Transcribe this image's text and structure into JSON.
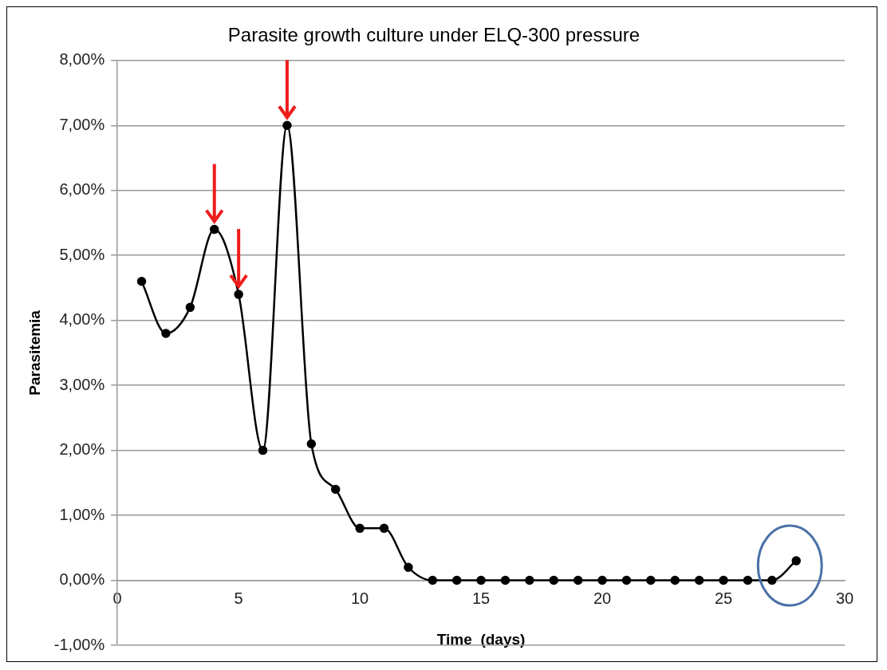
{
  "chart_data": {
    "type": "line",
    "title": "Parasite growth culture under ELQ-300 pressure",
    "xlabel": "Time  (days)",
    "ylabel": "Parasitemia",
    "x": [
      1,
      2,
      3,
      4,
      5,
      6,
      7,
      8,
      9,
      10,
      11,
      12,
      13,
      14,
      15,
      16,
      17,
      18,
      19,
      20,
      21,
      22,
      23,
      24,
      25,
      26,
      27,
      28
    ],
    "series": [
      {
        "color": "#000000",
        "values": [
          4.6,
          3.8,
          4.2,
          5.4,
          4.4,
          2.0,
          7.0,
          2.1,
          1.4,
          0.8,
          0.8,
          0.2,
          0,
          0,
          0,
          0,
          0,
          0,
          0,
          0,
          0,
          0,
          0,
          0,
          0,
          0,
          0,
          0.3
        ]
      }
    ],
    "xlim": [
      0,
      30
    ],
    "xticks": [
      0,
      5,
      10,
      15,
      20,
      25,
      30
    ],
    "ylim": [
      -1,
      8
    ],
    "yticks": [
      {
        "value": -1,
        "label": "-1,00%"
      },
      {
        "value": 0,
        "label": "0,00%"
      },
      {
        "value": 1,
        "label": "1,00%"
      },
      {
        "value": 2,
        "label": "2,00%"
      },
      {
        "value": 3,
        "label": "3,00%"
      },
      {
        "value": 4,
        "label": "4,00%"
      },
      {
        "value": 5,
        "label": "5,00%"
      },
      {
        "value": 6,
        "label": "6,00%"
      },
      {
        "value": 7,
        "label": "7,00%"
      },
      {
        "value": 8,
        "label": "8,00%"
      }
    ],
    "grid": "y",
    "legend": false,
    "marker": "circle",
    "line_style": "solid"
  }
}
